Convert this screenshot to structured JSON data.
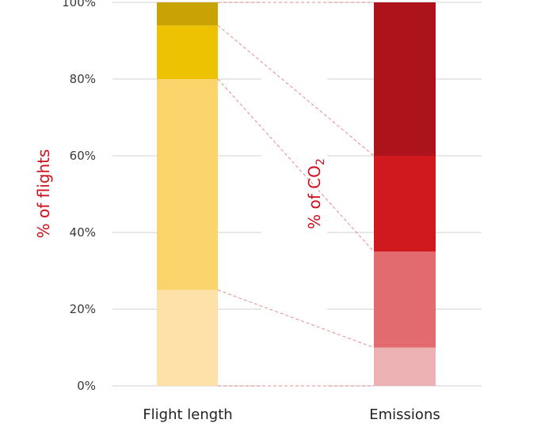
{
  "chart_data": {
    "type": "bar",
    "stacked": true,
    "categories": [
      "Flight length",
      "Emissions"
    ],
    "yticks": [
      "0%",
      "20%",
      "40%",
      "60%",
      "80%",
      "100%"
    ],
    "ylim": [
      0,
      100
    ],
    "grid": true,
    "left_axis": {
      "label": "% of flights",
      "color": "#d0101c"
    },
    "right_axis": {
      "label_prefix": "% of CO",
      "label_subscript": "2",
      "color": "#d0101c"
    },
    "bars": [
      {
        "category": "Flight length",
        "segments": [
          {
            "value": 25,
            "color": "#fde1a8"
          },
          {
            "value": 55,
            "color": "#fcd46c"
          },
          {
            "value": 14,
            "color": "#ecc202"
          },
          {
            "value": 6,
            "color": "#c9a204"
          }
        ]
      },
      {
        "category": "Emissions",
        "segments": [
          {
            "value": 10,
            "color": "#ecb1b2"
          },
          {
            "value": 25,
            "color": "#e26b70"
          },
          {
            "value": 25,
            "color": "#d0191e"
          },
          {
            "value": 40,
            "color": "#ac131a"
          }
        ]
      }
    ],
    "connector_color": "#e88a8f",
    "connectors": [
      {
        "from": 0,
        "to": 0
      },
      {
        "from": 25,
        "to": 10
      },
      {
        "from": 80,
        "to": 35
      },
      {
        "from": 94,
        "to": 60
      },
      {
        "from": 100,
        "to": 100
      }
    ]
  }
}
